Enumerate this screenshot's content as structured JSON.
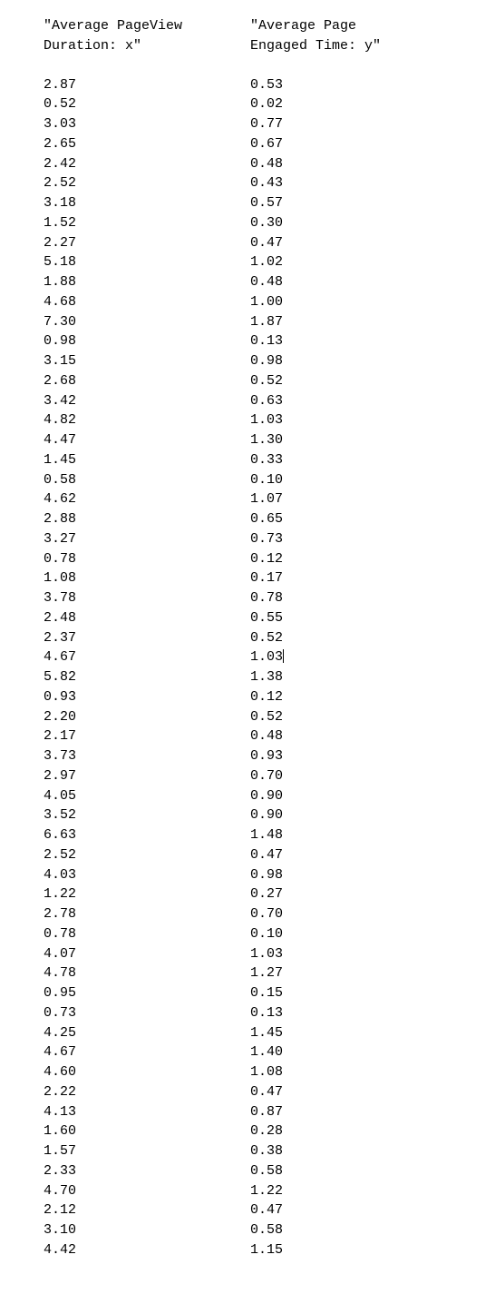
{
  "structure_type": "table",
  "font_family": "monospace",
  "font_size_pt": 11,
  "background_color": "#ffffff",
  "text_color": "#000000",
  "columns": [
    {
      "key": "x",
      "header_line1": "\"Average PageView",
      "header_line2": "Duration: x\""
    },
    {
      "key": "y",
      "header_line1": "\"Average Page",
      "header_line2": "Engaged Time: y\""
    }
  ],
  "cursor_row_index": 29,
  "cursor_col_key": "y",
  "rows": [
    {
      "x": "2.87",
      "y": "0.53"
    },
    {
      "x": "0.52",
      "y": "0.02"
    },
    {
      "x": "3.03",
      "y": "0.77"
    },
    {
      "x": "2.65",
      "y": "0.67"
    },
    {
      "x": "2.42",
      "y": "0.48"
    },
    {
      "x": "2.52",
      "y": "0.43"
    },
    {
      "x": "3.18",
      "y": "0.57"
    },
    {
      "x": "1.52",
      "y": "0.30"
    },
    {
      "x": "2.27",
      "y": "0.47"
    },
    {
      "x": "5.18",
      "y": "1.02"
    },
    {
      "x": "1.88",
      "y": "0.48"
    },
    {
      "x": "4.68",
      "y": "1.00"
    },
    {
      "x": "7.30",
      "y": "1.87"
    },
    {
      "x": "0.98",
      "y": "0.13"
    },
    {
      "x": "3.15",
      "y": "0.98"
    },
    {
      "x": "2.68",
      "y": "0.52"
    },
    {
      "x": "3.42",
      "y": "0.63"
    },
    {
      "x": "4.82",
      "y": "1.03"
    },
    {
      "x": "4.47",
      "y": "1.30"
    },
    {
      "x": "1.45",
      "y": "0.33"
    },
    {
      "x": "0.58",
      "y": "0.10"
    },
    {
      "x": "4.62",
      "y": "1.07"
    },
    {
      "x": "2.88",
      "y": "0.65"
    },
    {
      "x": "3.27",
      "y": "0.73"
    },
    {
      "x": "0.78",
      "y": "0.12"
    },
    {
      "x": "1.08",
      "y": "0.17"
    },
    {
      "x": "3.78",
      "y": "0.78"
    },
    {
      "x": "2.48",
      "y": "0.55"
    },
    {
      "x": "2.37",
      "y": "0.52"
    },
    {
      "x": "4.67",
      "y": "1.03"
    },
    {
      "x": "5.82",
      "y": "1.38"
    },
    {
      "x": "0.93",
      "y": "0.12"
    },
    {
      "x": "2.20",
      "y": "0.52"
    },
    {
      "x": "2.17",
      "y": "0.48"
    },
    {
      "x": "3.73",
      "y": "0.93"
    },
    {
      "x": "2.97",
      "y": "0.70"
    },
    {
      "x": "4.05",
      "y": "0.90"
    },
    {
      "x": "3.52",
      "y": "0.90"
    },
    {
      "x": "6.63",
      "y": "1.48"
    },
    {
      "x": "2.52",
      "y": "0.47"
    },
    {
      "x": "4.03",
      "y": "0.98"
    },
    {
      "x": "1.22",
      "y": "0.27"
    },
    {
      "x": "2.78",
      "y": "0.70"
    },
    {
      "x": "0.78",
      "y": "0.10"
    },
    {
      "x": "4.07",
      "y": "1.03"
    },
    {
      "x": "4.78",
      "y": "1.27"
    },
    {
      "x": "0.95",
      "y": "0.15"
    },
    {
      "x": "0.73",
      "y": "0.13"
    },
    {
      "x": "4.25",
      "y": "1.45"
    },
    {
      "x": "4.67",
      "y": "1.40"
    },
    {
      "x": "4.60",
      "y": "1.08"
    },
    {
      "x": "2.22",
      "y": "0.47"
    },
    {
      "x": "4.13",
      "y": "0.87"
    },
    {
      "x": "1.60",
      "y": "0.28"
    },
    {
      "x": "1.57",
      "y": "0.38"
    },
    {
      "x": "2.33",
      "y": "0.58"
    },
    {
      "x": "4.70",
      "y": "1.22"
    },
    {
      "x": "2.12",
      "y": "0.47"
    },
    {
      "x": "3.10",
      "y": "0.58"
    },
    {
      "x": "4.42",
      "y": "1.15"
    }
  ]
}
